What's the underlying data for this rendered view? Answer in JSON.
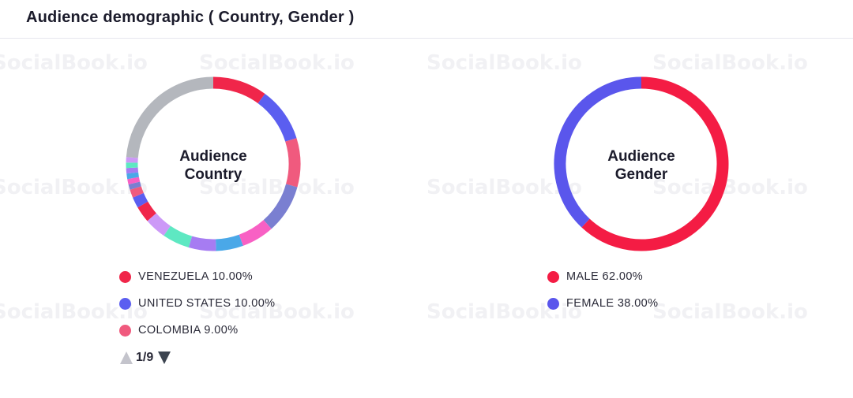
{
  "header": {
    "title": "Audience demographic ( Country, Gender )"
  },
  "watermark": "SocialBook.io",
  "pager": {
    "text": "1/9"
  },
  "chart_data": [
    {
      "type": "pie",
      "variant": "donut",
      "center_label": [
        "Audience",
        "Country"
      ],
      "slices": [
        {
          "label": "VENEZUELA",
          "value": 10.0,
          "color": "#f0264a"
        },
        {
          "label": "UNITED STATES",
          "value": 10.0,
          "color": "#5b5ef0"
        },
        {
          "label": "COLOMBIA",
          "value": 9.0,
          "color": "#f05a7e"
        },
        {
          "label": "",
          "value": 9.0,
          "color": "#7a7fd1"
        },
        {
          "label": "",
          "value": 6.0,
          "color": "#f860c4"
        },
        {
          "label": "",
          "value": 5.0,
          "color": "#4aa8e8"
        },
        {
          "label": "",
          "value": 5.0,
          "color": "#a67cf2"
        },
        {
          "label": "",
          "value": 5.0,
          "color": "#5ee8c2"
        },
        {
          "label": "",
          "value": 4.0,
          "color": "#cc99f7"
        },
        {
          "label": "",
          "value": 3.0,
          "color": "#f0264a"
        },
        {
          "label": "",
          "value": 2.0,
          "color": "#5b5ef0"
        },
        {
          "label": "",
          "value": 1.5,
          "color": "#f05a7e"
        },
        {
          "label": "",
          "value": 1.0,
          "color": "#7a7fd1"
        },
        {
          "label": "",
          "value": 1.0,
          "color": "#f860c4"
        },
        {
          "label": "",
          "value": 1.0,
          "color": "#4aa8e8"
        },
        {
          "label": "",
          "value": 1.0,
          "color": "#a67cf2"
        },
        {
          "label": "",
          "value": 1.0,
          "color": "#5ee8c2"
        },
        {
          "label": "",
          "value": 1.0,
          "color": "#cc99f7"
        },
        {
          "label": "",
          "value": 23.5,
          "color": "#b4b7bd"
        }
      ],
      "legend": [
        {
          "text": "VENEZUELA 10.00%",
          "color": "#f0264a"
        },
        {
          "text": "UNITED STATES 10.00%",
          "color": "#5b5ef0"
        },
        {
          "text": "COLOMBIA 9.00%",
          "color": "#f05a7e"
        }
      ]
    },
    {
      "type": "pie",
      "variant": "donut",
      "center_label": [
        "Audience",
        "Gender"
      ],
      "slices": [
        {
          "label": "MALE",
          "value": 62.0,
          "color": "#f41c44"
        },
        {
          "label": "FEMALE",
          "value": 38.0,
          "color": "#5a56ec"
        }
      ],
      "legend": [
        {
          "text": "MALE 62.00%",
          "color": "#f41c44"
        },
        {
          "text": "FEMALE 38.00%",
          "color": "#5a56ec"
        }
      ]
    }
  ]
}
